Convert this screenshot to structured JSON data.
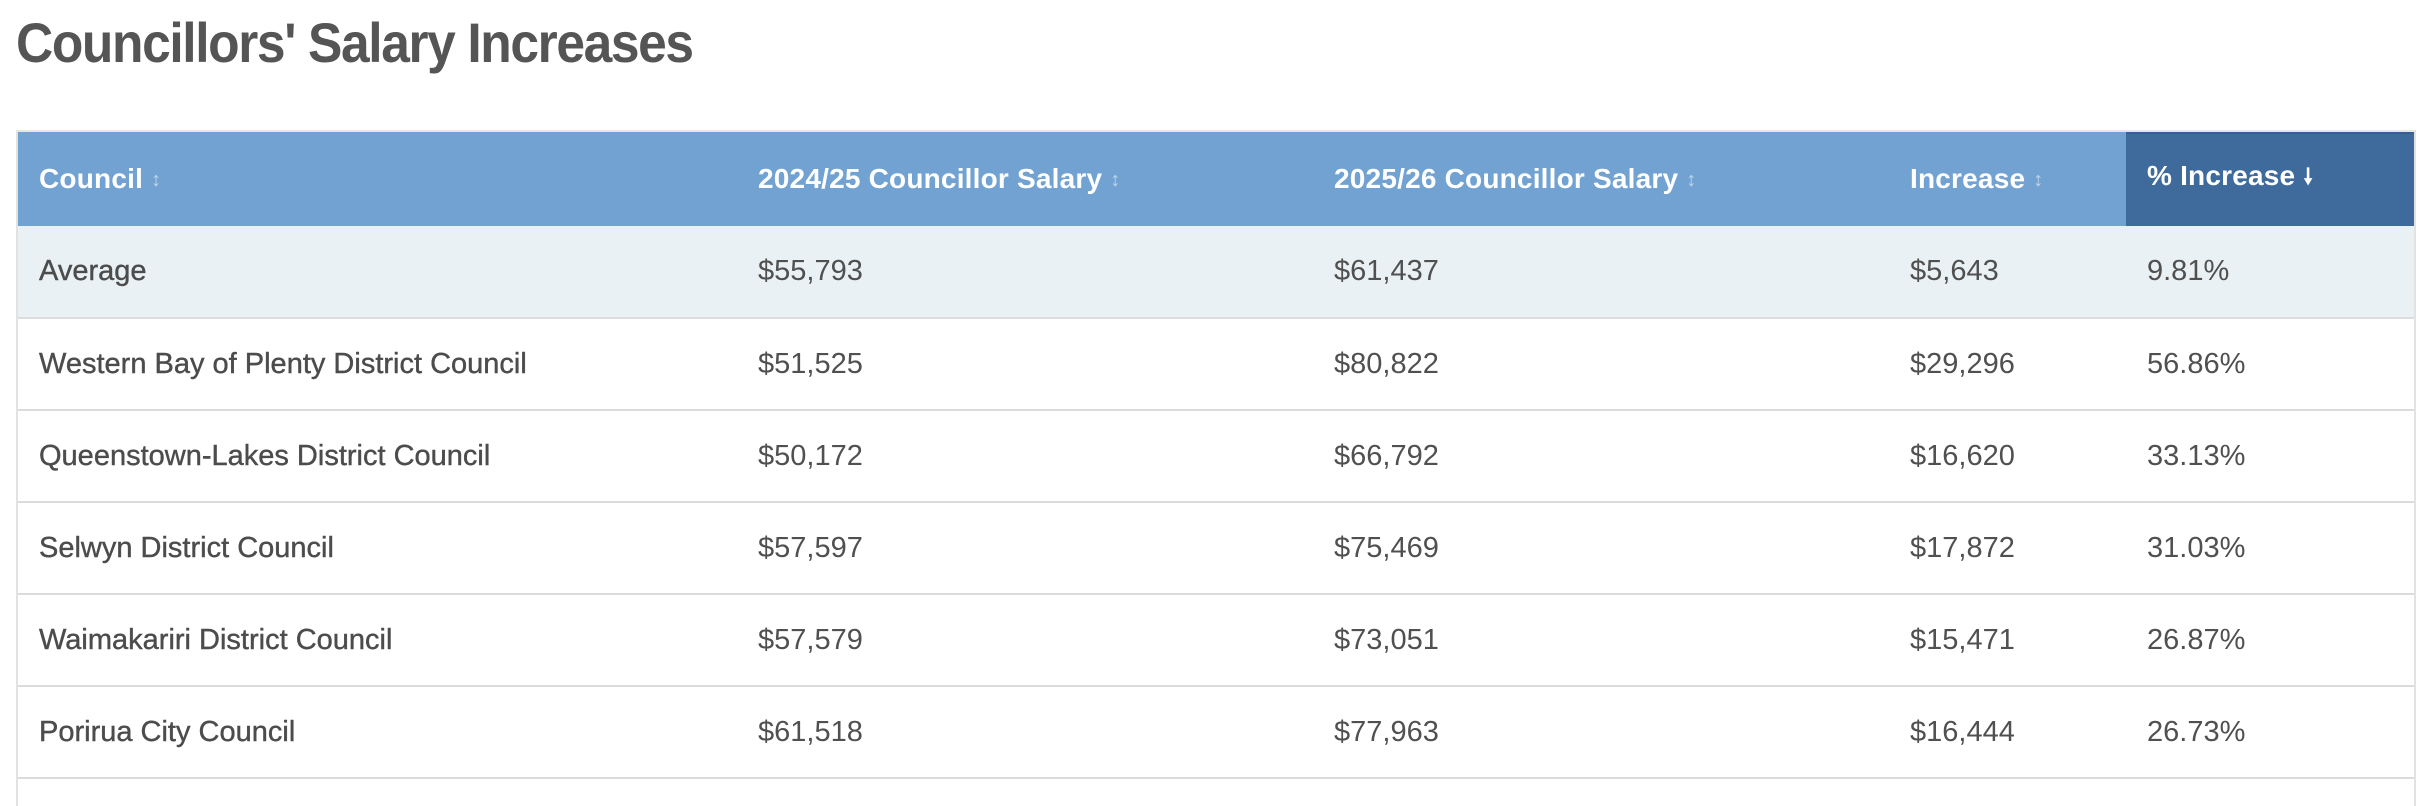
{
  "page": {
    "title": "Councillors' Salary Increases"
  },
  "table": {
    "columns": [
      {
        "label": "Council",
        "sort_icon": "↕",
        "sort_state": "unsorted"
      },
      {
        "label": "2024/25 Councillor Salary",
        "sort_icon": "↕",
        "sort_state": "unsorted"
      },
      {
        "label": "2025/26 Councillor Salary",
        "sort_icon": "↕",
        "sort_state": "unsorted"
      },
      {
        "label": "Increase",
        "sort_icon": "↕",
        "sort_state": "unsorted"
      },
      {
        "label": "% Increase",
        "sort_icon": "🠗",
        "sort_state": "descending"
      }
    ],
    "rows": [
      {
        "council": "Average",
        "salary_2425": "$55,793",
        "salary_2526": "$61,437",
        "increase": "$5,643",
        "pct_increase": "9.81%",
        "highlight": true
      },
      {
        "council": "Western Bay of Plenty District Council",
        "salary_2425": "$51,525",
        "salary_2526": "$80,822",
        "increase": "$29,296",
        "pct_increase": "56.86%"
      },
      {
        "council": "Queenstown-Lakes District Council",
        "salary_2425": "$50,172",
        "salary_2526": "$66,792",
        "increase": "$16,620",
        "pct_increase": "33.13%"
      },
      {
        "council": "Selwyn District Council",
        "salary_2425": "$57,597",
        "salary_2526": "$75,469",
        "increase": "$17,872",
        "pct_increase": "31.03%"
      },
      {
        "council": "Waimakariri District Council",
        "salary_2425": "$57,579",
        "salary_2526": "$73,051",
        "increase": "$15,471",
        "pct_increase": "26.87%"
      },
      {
        "council": "Porirua City Council",
        "salary_2425": "$61,518",
        "salary_2526": "$77,963",
        "increase": "$16,444",
        "pct_increase": "26.73%"
      }
    ]
  },
  "colors": {
    "header_bg": "#72a2d1",
    "header_active_bg": "#3f6a9c",
    "average_row_bg": "#e9f1f4",
    "text": "#505050",
    "title": "#555555",
    "row_border": "#dcdcdc"
  }
}
